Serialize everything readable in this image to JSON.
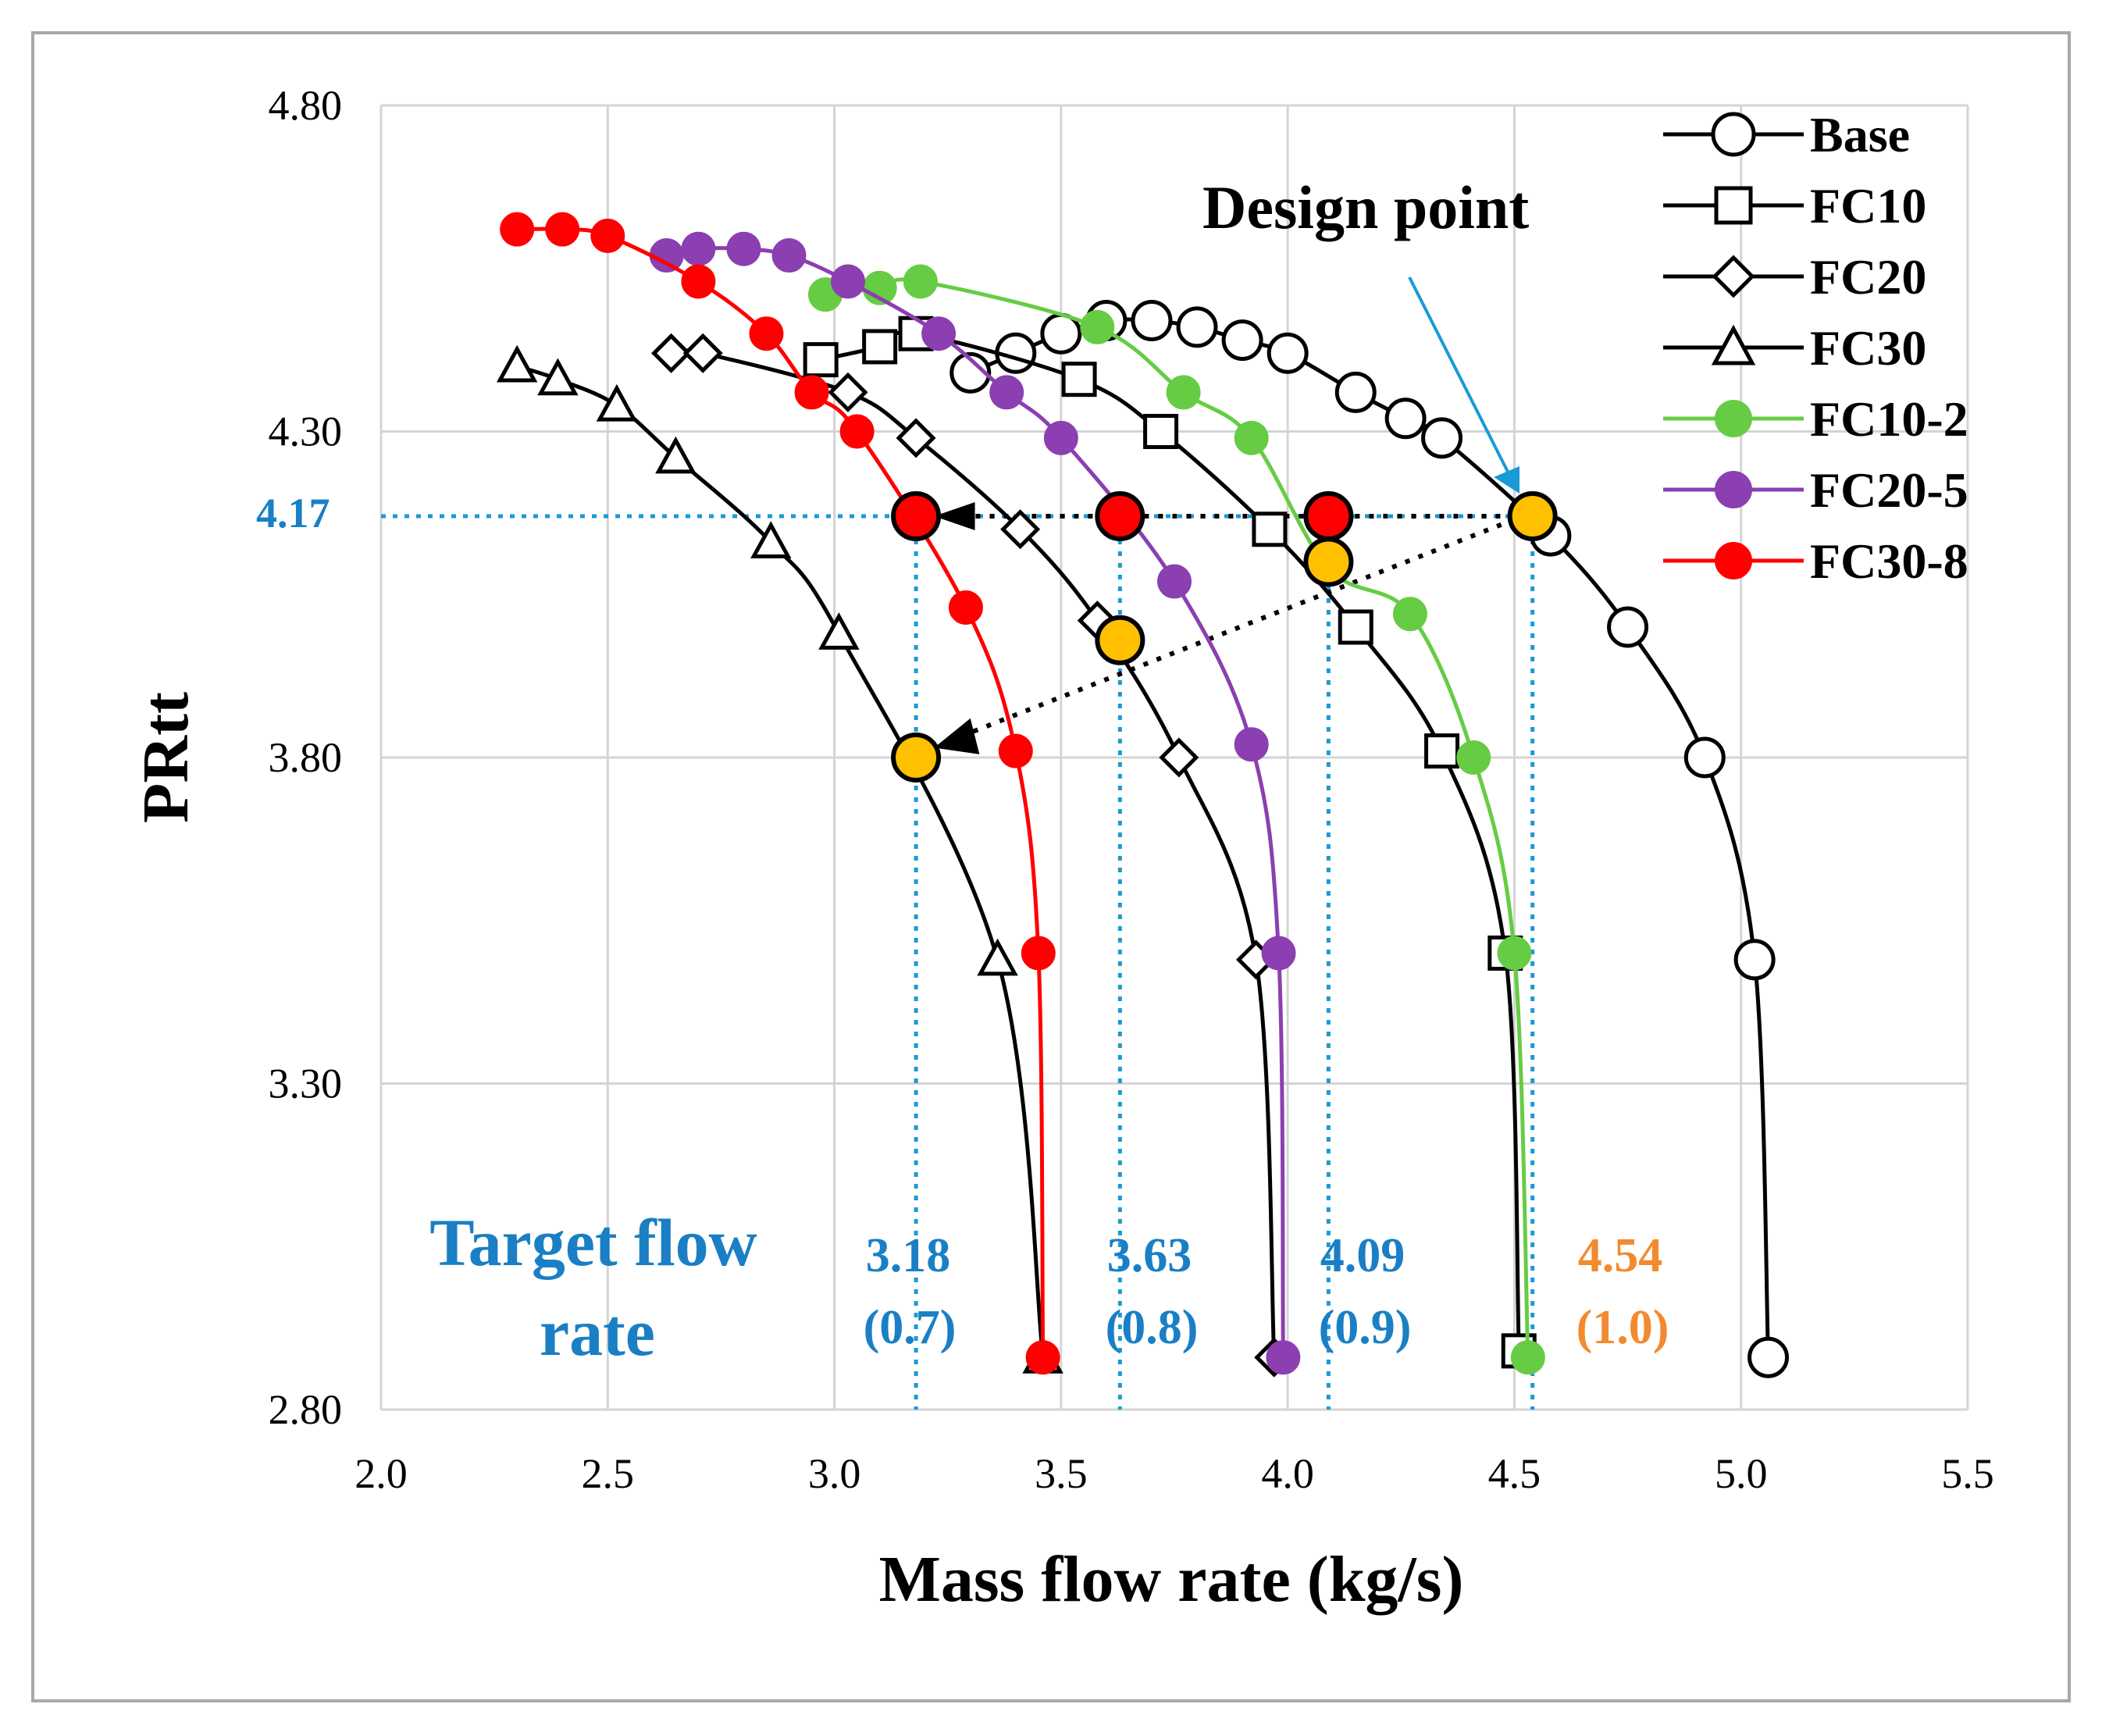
{
  "chart_data": {
    "type": "line",
    "xlabel": "Mass flow rate (kg/s)",
    "ylabel": "PRtt",
    "xlim": [
      2.0,
      5.5
    ],
    "ylim": [
      2.8,
      4.8
    ],
    "xticks": [
      "2.0",
      "2.5",
      "3.0",
      "3.5",
      "4.0",
      "4.5",
      "5.0",
      "5.5"
    ],
    "yticks": [
      "2.80",
      "3.30",
      "3.80",
      "4.30",
      "4.80"
    ],
    "series": [
      {
        "name": "Base",
        "color": "#000000",
        "marker": "circle-open",
        "points": [
          [
            3.3,
            4.39
          ],
          [
            3.4,
            4.42
          ],
          [
            3.5,
            4.45
          ],
          [
            3.6,
            4.47
          ],
          [
            3.7,
            4.47
          ],
          [
            3.8,
            4.46
          ],
          [
            3.9,
            4.44
          ],
          [
            4.0,
            4.42
          ],
          [
            4.15,
            4.36
          ],
          [
            4.26,
            4.32
          ],
          [
            4.34,
            4.29
          ],
          [
            4.58,
            4.14
          ],
          [
            4.75,
            4.0
          ],
          [
            4.92,
            3.8
          ],
          [
            5.03,
            3.49
          ],
          [
            5.06,
            2.88
          ]
        ]
      },
      {
        "name": "FC10",
        "color": "#000000",
        "marker": "square-open",
        "points": [
          [
            2.97,
            4.41
          ],
          [
            3.1,
            4.43
          ],
          [
            3.18,
            4.45
          ],
          [
            3.54,
            4.38
          ],
          [
            3.72,
            4.3
          ],
          [
            3.96,
            4.15
          ],
          [
            4.15,
            4.0
          ],
          [
            4.34,
            3.81
          ],
          [
            4.48,
            3.5
          ],
          [
            4.51,
            2.89
          ]
        ]
      },
      {
        "name": "FC20",
        "color": "#000000",
        "marker": "diamond-open",
        "points": [
          [
            2.64,
            4.42
          ],
          [
            2.71,
            4.42
          ],
          [
            3.03,
            4.36
          ],
          [
            3.18,
            4.29
          ],
          [
            3.41,
            4.15
          ],
          [
            3.58,
            4.01
          ],
          [
            3.76,
            3.8
          ],
          [
            3.93,
            3.49
          ],
          [
            3.97,
            2.88
          ]
        ]
      },
      {
        "name": "FC30",
        "color": "#000000",
        "marker": "triangle-open",
        "points": [
          [
            2.3,
            4.4
          ],
          [
            2.39,
            4.38
          ],
          [
            2.52,
            4.34
          ],
          [
            2.65,
            4.26
          ],
          [
            2.86,
            4.13
          ],
          [
            3.01,
            3.99
          ],
          [
            3.36,
            3.49
          ],
          [
            3.46,
            2.88
          ]
        ]
      },
      {
        "name": "FC10-2",
        "color": "#66cc44",
        "marker": "circle-filled",
        "points": [
          [
            2.98,
            4.51
          ],
          [
            3.1,
            4.52
          ],
          [
            3.19,
            4.53
          ],
          [
            3.58,
            4.46
          ],
          [
            3.77,
            4.36
          ],
          [
            3.92,
            4.29
          ],
          [
            4.09,
            4.09
          ],
          [
            4.27,
            4.02
          ],
          [
            4.41,
            3.8
          ],
          [
            4.5,
            3.5
          ],
          [
            4.53,
            2.88
          ]
        ]
      },
      {
        "name": "FC20-5",
        "color": "#8b3fb0",
        "marker": "circle-filled",
        "points": [
          [
            2.63,
            4.57
          ],
          [
            2.7,
            4.58
          ],
          [
            2.8,
            4.58
          ],
          [
            2.9,
            4.57
          ],
          [
            3.03,
            4.53
          ],
          [
            3.23,
            4.45
          ],
          [
            3.38,
            4.36
          ],
          [
            3.5,
            4.29
          ],
          [
            3.75,
            4.07
          ],
          [
            3.92,
            3.82
          ],
          [
            3.98,
            3.5
          ],
          [
            3.99,
            2.88
          ]
        ]
      },
      {
        "name": "FC30-8",
        "color": "#ff0000",
        "marker": "circle-filled",
        "points": [
          [
            2.3,
            4.61
          ],
          [
            2.4,
            4.61
          ],
          [
            2.5,
            4.6
          ],
          [
            2.7,
            4.53
          ],
          [
            2.85,
            4.45
          ],
          [
            2.95,
            4.36
          ],
          [
            3.05,
            4.3
          ],
          [
            3.29,
            4.03
          ],
          [
            3.4,
            3.81
          ],
          [
            3.45,
            3.5
          ],
          [
            3.46,
            2.88
          ]
        ]
      }
    ],
    "highlight_points": {
      "red": [
        [
          3.18,
          4.17
        ],
        [
          3.63,
          4.17
        ],
        [
          4.09,
          4.17
        ]
      ],
      "orange": [
        [
          4.54,
          4.17
        ],
        [
          4.09,
          4.1
        ],
        [
          3.63,
          3.98
        ],
        [
          3.18,
          3.8
        ]
      ]
    },
    "target_flows": [
      3.18,
      3.63,
      4.09,
      4.54
    ],
    "reference_pressure": 4.17,
    "annotations": {
      "design_point": "Design point",
      "target_title_line1": "Target flow",
      "target_title_line2": "rate",
      "pressure_label": "4.17",
      "flows": [
        {
          "value": "3.18",
          "ratio": "(0.7)"
        },
        {
          "value": "3.63",
          "ratio": "(0.8)"
        },
        {
          "value": "4.09",
          "ratio": "(0.9)"
        },
        {
          "value": "4.54",
          "ratio": "(1.0)"
        }
      ]
    },
    "legend": [
      "Base",
      "FC10",
      "FC20",
      "FC30",
      "FC10-2",
      "FC20-5",
      "FC30-8"
    ],
    "legend_position": "top-right",
    "grid": true
  }
}
